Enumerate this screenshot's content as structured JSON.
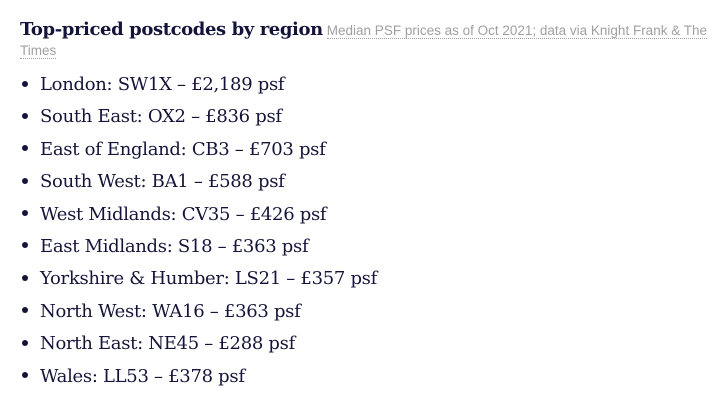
{
  "header": {
    "title": "Top-priced postcodes by region",
    "subtitle": "Median PSF prices as of Oct 2021; data via Knight Frank & The Times"
  },
  "items": [
    {
      "text": "London: SW1X – £2,189 psf"
    },
    {
      "text": "South East: OX2 – £836 psf"
    },
    {
      "text": "East of England: CB3 – £703 psf"
    },
    {
      "text": "South West: BA1 – £588 psf"
    },
    {
      "text": "West Midlands: CV35 – £426 psf"
    },
    {
      "text": "East Midlands: S18 – £363 psf"
    },
    {
      "text": "Yorkshire & Humber: LS21 – £357 psf"
    },
    {
      "text": "North West: WA16 – £363 psf"
    },
    {
      "text": "North East: NE45 – £288 psf"
    },
    {
      "text": "Wales: LL53 – £378 psf"
    }
  ]
}
